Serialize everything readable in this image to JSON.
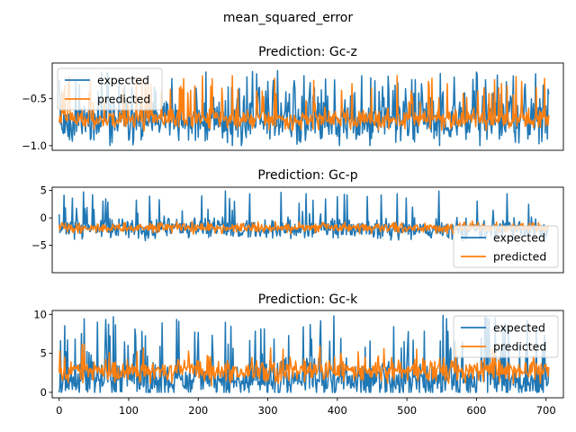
{
  "figure": {
    "suptitle": "mean_squared_error"
  },
  "chart_data": [
    {
      "type": "line",
      "title": "Prediction: Gc-z",
      "xlabel": "",
      "ylabel": "",
      "xlim": [
        -10,
        725
      ],
      "ylim": [
        -1.05,
        -0.12
      ],
      "xticks": [],
      "yticks": [
        -1.0,
        -0.5
      ],
      "ytick_labels": [
        "−1.0",
        "−0.5"
      ],
      "legend": "upper-left",
      "series": [
        {
          "name": "expected",
          "color": "#1f77b4",
          "n": 705,
          "min": -1.0,
          "max": -0.2,
          "center": -0.75,
          "spread": 0.12,
          "spike_prob": 0.12,
          "seed": 11
        },
        {
          "name": "predicted",
          "color": "#ff7f0e",
          "n": 705,
          "min": -0.86,
          "max": -0.25,
          "center": -0.72,
          "spread": 0.05,
          "spike_prob": 0.09,
          "seed": 23
        }
      ]
    },
    {
      "type": "line",
      "title": "Prediction: Gc-p",
      "xlabel": "",
      "ylabel": "",
      "xlim": [
        -10,
        725
      ],
      "ylim": [
        -10.0,
        5.6
      ],
      "xticks": [],
      "yticks": [
        -5,
        0,
        5
      ],
      "ytick_labels": [
        "−5",
        "0",
        "5"
      ],
      "legend": "lower-right",
      "series": [
        {
          "name": "expected",
          "color": "#1f77b4",
          "n": 705,
          "min": -9.0,
          "max": 5.0,
          "center": -2.0,
          "spread": 0.9,
          "spike_prob": 0.07,
          "seed": 37
        },
        {
          "name": "predicted",
          "color": "#ff7f0e",
          "n": 705,
          "min": -3.5,
          "max": -0.3,
          "center": -1.8,
          "spread": 0.45,
          "spike_prob": 0.0,
          "seed": 41
        }
      ]
    },
    {
      "type": "line",
      "title": "Prediction: Gc-k",
      "xlabel": "",
      "ylabel": "",
      "xlim": [
        -10,
        725
      ],
      "ylim": [
        -0.7,
        10.5
      ],
      "xticks": [
        0,
        100,
        200,
        300,
        400,
        500,
        600,
        700
      ],
      "xtick_labels": [
        "0",
        "100",
        "200",
        "300",
        "400",
        "500",
        "600",
        "700"
      ],
      "yticks": [
        0,
        5,
        10
      ],
      "ytick_labels": [
        "0",
        "5",
        "10"
      ],
      "legend": "upper-right",
      "series": [
        {
          "name": "expected",
          "color": "#1f77b4",
          "n": 705,
          "min": 0.0,
          "max": 10.0,
          "center": 1.5,
          "spread": 1.2,
          "spike_prob": 0.14,
          "seed": 53
        },
        {
          "name": "predicted",
          "color": "#ff7f0e",
          "n": 705,
          "min": -0.3,
          "max": 6.2,
          "center": 2.8,
          "spread": 0.7,
          "spike_prob": 0.05,
          "seed": 67
        }
      ]
    }
  ]
}
